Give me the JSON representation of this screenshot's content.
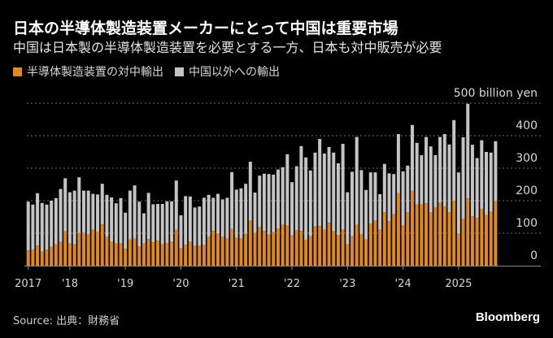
{
  "header": {
    "title": "日本の半導体製造装置メーカーにとって中国は重要市場",
    "subtitle": "中国は日本製の半導体製造装置を必要とする一方、日本も対中販売が必要"
  },
  "footer": {
    "source": "Source: 出典：財務省",
    "brand": "Bloomberg"
  },
  "chart_data": {
    "type": "bar",
    "stacked": true,
    "title": "日本の半導体製造装置メーカーにとって中国は重要市場",
    "ylabel": "billion yen",
    "ylim": [
      0,
      500
    ],
    "yticks": [
      {
        "value": 0,
        "label": "0"
      },
      {
        "value": 100,
        "label": "100"
      },
      {
        "value": 200,
        "label": "200"
      },
      {
        "value": 300,
        "label": "300"
      },
      {
        "value": 400,
        "label": "400"
      },
      {
        "value": 500,
        "label": "500 billion yen"
      }
    ],
    "grid": true,
    "legend_placement": "top-left",
    "x_start": "2017-04",
    "x_end": "2025-09",
    "frequency": "monthly",
    "xticks": [
      {
        "index": 0,
        "label": "2017"
      },
      {
        "index": 9,
        "label": "'18"
      },
      {
        "index": 21,
        "label": "'19"
      },
      {
        "index": 33,
        "label": "'20"
      },
      {
        "index": 45,
        "label": "'21"
      },
      {
        "index": 57,
        "label": "'22"
      },
      {
        "index": 69,
        "label": "'23"
      },
      {
        "index": 81,
        "label": "'24"
      },
      {
        "index": 93,
        "label": "2025"
      }
    ],
    "series": [
      {
        "name": "半導体製造装置の対中輸出",
        "color": "#e08a1e",
        "values": [
          47,
          49,
          62,
          44,
          50,
          58,
          66,
          73,
          106,
          69,
          66,
          101,
          101,
          96,
          111,
          104,
          127,
          88,
          74,
          69,
          69,
          52,
          81,
          83,
          60,
          69,
          82,
          72,
          77,
          66,
          69,
          75,
          111,
          54,
          64,
          73,
          61,
          61,
          64,
          88,
          107,
          98,
          88,
          83,
          113,
          86,
          84,
          98,
          139,
          101,
          119,
          107,
          96,
          102,
          115,
          126,
          124,
          93,
          109,
          107,
          80,
          91,
          121,
          122,
          111,
          132,
          106,
          94,
          111,
          66,
          91,
          126,
          96,
          81,
          130,
          140,
          111,
          165,
          137,
          158,
          223,
          125,
          165,
          231,
          188,
          188,
          192,
          164,
          180,
          195,
          182,
          164,
          200,
          98,
          145,
          207,
          152,
          147,
          175,
          156,
          166,
          198
        ]
      },
      {
        "name": "中国以外への輸出",
        "color": "#c4c4c4",
        "values": [
          150,
          139,
          161,
          149,
          138,
          142,
          142,
          163,
          163,
          157,
          165,
          171,
          130,
          135,
          110,
          115,
          125,
          130,
          136,
          123,
          139,
          111,
          150,
          164,
          137,
          92,
          142,
          117,
          113,
          124,
          129,
          123,
          151,
          101,
          150,
          140,
          118,
          121,
          145,
          130,
          102,
          123,
          116,
          126,
          175,
          148,
          154,
          154,
          181,
          124,
          158,
          176,
          186,
          178,
          181,
          177,
          219,
          164,
          197,
          261,
          253,
          202,
          227,
          268,
          234,
          233,
          242,
          221,
          264,
          160,
          198,
          270,
          198,
          152,
          157,
          147,
          109,
          148,
          147,
          124,
          182,
          165,
          143,
          202,
          190,
          152,
          204,
          203,
          160,
          201,
          223,
          209,
          248,
          189,
          250,
          291,
          220,
          184,
          211,
          194,
          182,
          185
        ]
      }
    ]
  }
}
